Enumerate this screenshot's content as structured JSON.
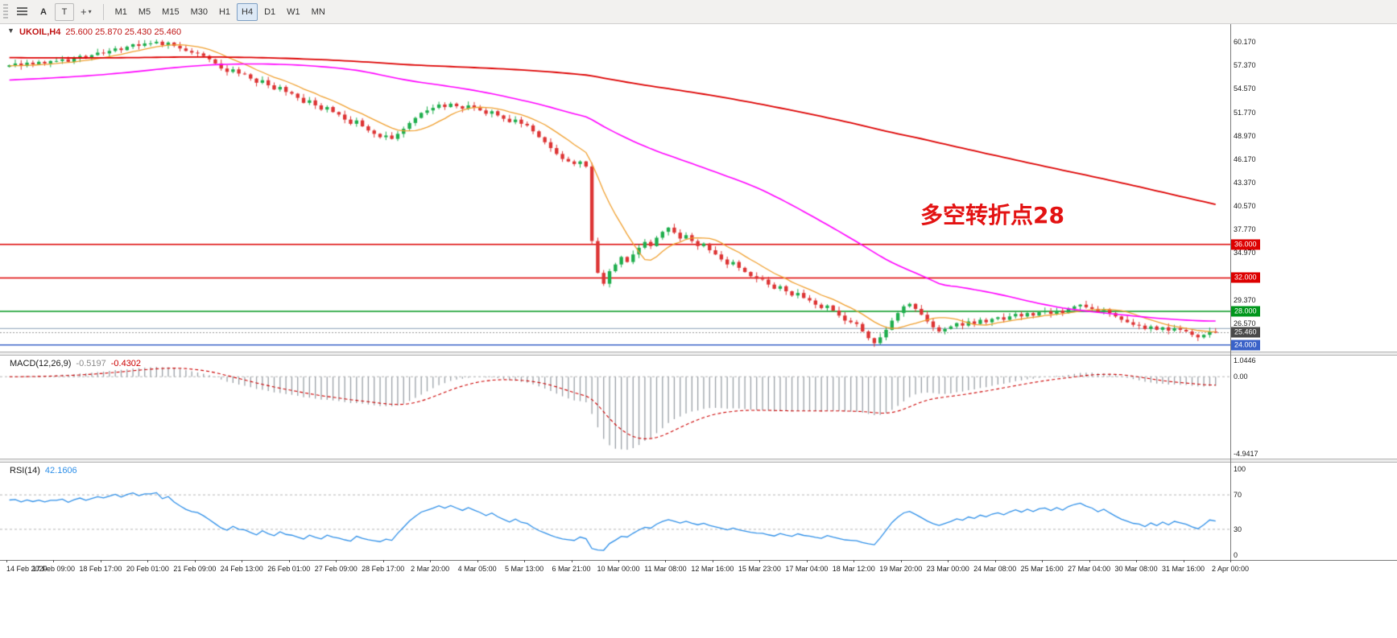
{
  "toolbar": {
    "tools": {
      "annotate": "A",
      "text": "T",
      "crosshair": "+",
      "caret": "▾"
    },
    "timeframes": [
      {
        "label": "M1",
        "selected": false
      },
      {
        "label": "M5",
        "selected": false
      },
      {
        "label": "M15",
        "selected": false
      },
      {
        "label": "M30",
        "selected": false
      },
      {
        "label": "H1",
        "selected": false
      },
      {
        "label": "H4",
        "selected": true
      },
      {
        "label": "D1",
        "selected": false
      },
      {
        "label": "W1",
        "selected": false
      },
      {
        "label": "MN",
        "selected": false
      }
    ]
  },
  "chart": {
    "title_symbol": "UKOIL,H4",
    "title_ohlc": "25.600 25.870 25.430 25.460",
    "annotation": "多空转折点28",
    "one_click_icon": "▼"
  },
  "chart_data": {
    "type": "candlestick",
    "symbol": "UKOIL",
    "timeframe": "H4",
    "slots": 208,
    "label_every": 8,
    "x_labels": [
      "14 Feb 2020",
      "17 Feb 09:00",
      "18 Feb 17:00",
      "20 Feb 01:00",
      "21 Feb 09:00",
      "24 Feb 13:00",
      "26 Feb 01:00",
      "27 Feb 09:00",
      "28 Feb 17:00",
      "2 Mar 20:00",
      "4 Mar 05:00",
      "5 Mar 13:00",
      "6 Mar 21:00",
      "10 Mar 00:00",
      "11 Mar 08:00",
      "12 Mar 16:00",
      "15 Mar 23:00",
      "17 Mar 04:00",
      "18 Mar 12:00",
      "19 Mar 20:00",
      "23 Mar 00:00",
      "24 Mar 08:00",
      "25 Mar 16:00",
      "27 Mar 04:00",
      "30 Mar 08:00",
      "31 Mar 16:00",
      "2 Apr 00:00"
    ],
    "closes": [
      57.4,
      57.6,
      57.3,
      57.7,
      57.5,
      57.8,
      57.6,
      57.9,
      57.9,
      58.1,
      57.8,
      58.2,
      58.5,
      58.3,
      58.6,
      58.9,
      58.8,
      59.1,
      59.4,
      59.2,
      59.6,
      59.9,
      59.7,
      60.0,
      60.0,
      60.2,
      59.8,
      60.1,
      59.7,
      59.4,
      59.1,
      58.9,
      58.8,
      58.5,
      58.1,
      57.6,
      57.0,
      56.6,
      56.9,
      56.4,
      56.3,
      55.8,
      55.3,
      55.6,
      55.0,
      54.5,
      54.8,
      54.2,
      54.0,
      53.5,
      52.9,
      53.2,
      52.6,
      52.1,
      52.4,
      51.8,
      51.5,
      50.9,
      50.4,
      50.8,
      50.1,
      49.6,
      49.2,
      48.8,
      49.0,
      48.6,
      49.2,
      49.8,
      50.5,
      51.1,
      51.7,
      52.0,
      52.3,
      52.7,
      52.4,
      52.8,
      52.5,
      52.2,
      52.6,
      52.3,
      52.0,
      51.6,
      51.9,
      51.4,
      51.0,
      50.6,
      50.9,
      50.4,
      50.2,
      49.5,
      48.8,
      48.2,
      47.5,
      46.8,
      46.2,
      45.9,
      45.6,
      45.9,
      45.3,
      36.4,
      32.6,
      31.3,
      32.8,
      33.6,
      34.5,
      33.9,
      34.8,
      35.6,
      36.3,
      35.8,
      36.8,
      37.5,
      38.0,
      37.4,
      36.7,
      37.1,
      36.4,
      35.8,
      36.1,
      35.3,
      34.8,
      34.2,
      33.6,
      33.9,
      33.2,
      32.7,
      32.2,
      31.9,
      31.8,
      31.2,
      30.7,
      31.0,
      30.4,
      29.9,
      30.2,
      29.6,
      29.3,
      28.8,
      28.4,
      28.7,
      28.1,
      27.5,
      26.9,
      26.7,
      26.5,
      25.6,
      24.8,
      24.2,
      24.9,
      25.8,
      26.9,
      27.8,
      28.6,
      28.9,
      28.3,
      27.6,
      26.8,
      26.1,
      25.6,
      25.9,
      26.2,
      26.6,
      26.3,
      26.8,
      26.5,
      27.0,
      26.7,
      27.1,
      27.3,
      27.0,
      27.4,
      27.7,
      27.4,
      27.8,
      27.5,
      27.9,
      28.0,
      27.7,
      28.1,
      27.8,
      28.3,
      28.6,
      28.8,
      28.5,
      28.3,
      27.9,
      28.2,
      27.8,
      27.4,
      27.0,
      26.7,
      26.4,
      26.3,
      25.9,
      26.2,
      25.8,
      26.1,
      25.7,
      26.0,
      25.8,
      25.6,
      25.2,
      24.9,
      25.2,
      25.6,
      25.46
    ],
    "last_ohlc": {
      "open": "25.600",
      "high": "25.870",
      "low": "25.430",
      "close": "25.460"
    },
    "price_axis": {
      "min": 23.2,
      "max": 62.3,
      "labels": [
        "60.170",
        "57.370",
        "54.570",
        "51.770",
        "48.970",
        "46.170",
        "43.370",
        "40.570",
        "37.770",
        "34.970",
        "29.370",
        "26.570"
      ]
    },
    "levels": [
      {
        "price": 36.0,
        "label": "36.000",
        "color": "#dd0000"
      },
      {
        "price": 32.0,
        "label": "32.000",
        "color": "#dd0000"
      },
      {
        "price": 28.0,
        "label": "28.000",
        "color": "#00971c"
      },
      {
        "price": 24.0,
        "label": "24.000",
        "color": "#3a62c8"
      },
      {
        "price": 25.95,
        "label": null,
        "color": "#9fb2c4"
      }
    ],
    "current_price": {
      "value": 25.46,
      "label": "25.460",
      "badge_color": "#4a4a4a"
    },
    "candle_colors": {
      "up": "#1fae4d",
      "down": "#dd3434"
    },
    "moving_averages": [
      {
        "name": "ma-fast",
        "window": 10,
        "seed": 57.3,
        "color": "#f0a030",
        "width": 1.3
      },
      {
        "name": "ma-mid",
        "window": 60,
        "seed": 55.6,
        "color": "#ff00ff",
        "width": 1.6
      },
      {
        "name": "ma-slow",
        "window": 200,
        "seed": 58.3,
        "color": "#dd0000",
        "width": 1.8
      }
    ],
    "macd": {
      "title": "MACD(12,26,9)",
      "value_main": "-0.5197",
      "value_signal": "-0.4302",
      "fast": 12,
      "slow": 26,
      "signal": 9,
      "axis_max": 1.0446,
      "axis_min": -4.9417,
      "axis_labels": [
        "1.0446",
        "0.00",
        "-4.9417"
      ],
      "histogram_color": "#9aa0a6",
      "signal_color": "#cc0000"
    },
    "rsi": {
      "title": "RSI(14)",
      "value": "42.1606",
      "period": 14,
      "axis_labels": [
        "100",
        "70",
        "30",
        "0"
      ],
      "levels": [
        70,
        30
      ],
      "line_color": "#2e8fe8",
      "axis_max": 100,
      "axis_min": 0
    }
  }
}
